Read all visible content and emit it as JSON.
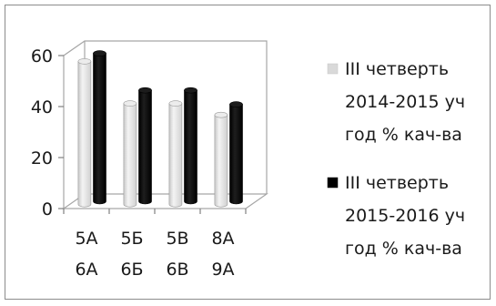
{
  "chart_data": {
    "type": "bar",
    "style": "3d-clustered-column",
    "categories": [
      [
        "5А",
        "6А"
      ],
      [
        "5Б",
        "6Б"
      ],
      [
        "5В",
        "6В"
      ],
      [
        "8А",
        "9А"
      ]
    ],
    "series": [
      {
        "name": [
          "III четверть",
          "2014-2015 уч",
          "год % кач-ва"
        ],
        "values": [
          56,
          39.5,
          39.5,
          35
        ],
        "color": "#d9d9d9"
      },
      {
        "name": [
          "III четверть",
          "2015-2016 уч",
          "год % кач-ва"
        ],
        "values": [
          58,
          43.5,
          43.5,
          38
        ],
        "color": "#000000"
      }
    ],
    "y_ticks": [
      "0",
      "20",
      "40",
      "60"
    ],
    "ylim": [
      0,
      60
    ],
    "grid": false,
    "legend_position": "right"
  }
}
